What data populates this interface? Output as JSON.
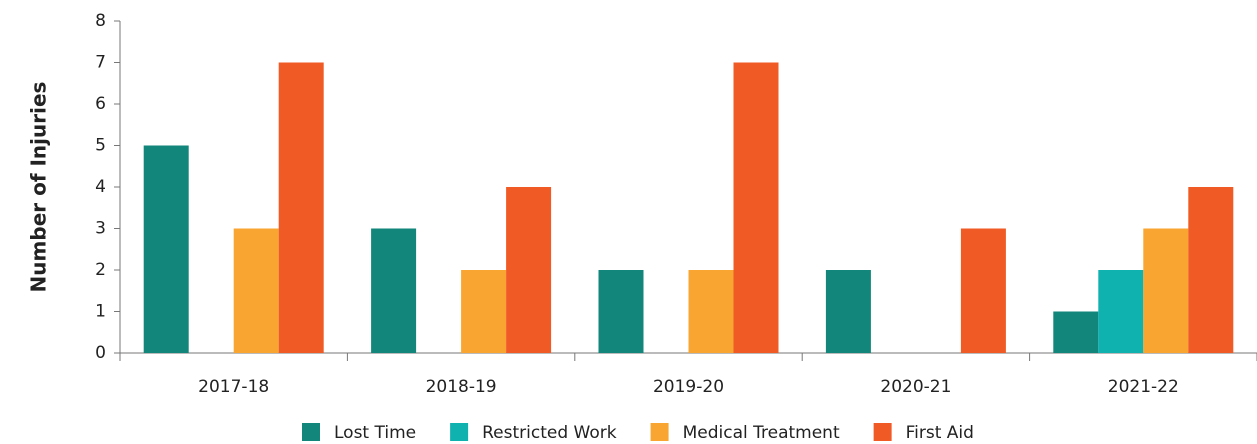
{
  "chart_data": {
    "type": "bar",
    "y_label": "Number of Injuries",
    "categories": [
      "2017-18",
      "2018-19",
      "2019-20",
      "2020-21",
      "2021-22"
    ],
    "series": [
      {
        "name": "Lost Time",
        "color": "#12867a",
        "values": [
          5,
          3,
          2,
          2,
          1
        ]
      },
      {
        "name": "Restricted Work",
        "color": "#10b2b0",
        "values": [
          0,
          0,
          0,
          0,
          2
        ]
      },
      {
        "name": "Medical Treatment",
        "color": "#f8a631",
        "values": [
          3,
          2,
          2,
          0,
          3
        ]
      },
      {
        "name": "First Aid",
        "color": "#f05a25",
        "values": [
          7,
          4,
          7,
          3,
          4
        ]
      }
    ],
    "ylim": [
      0,
      8
    ],
    "yticks": [
      0,
      1,
      2,
      3,
      4,
      5,
      6,
      7,
      8
    ],
    "grid": false
  }
}
